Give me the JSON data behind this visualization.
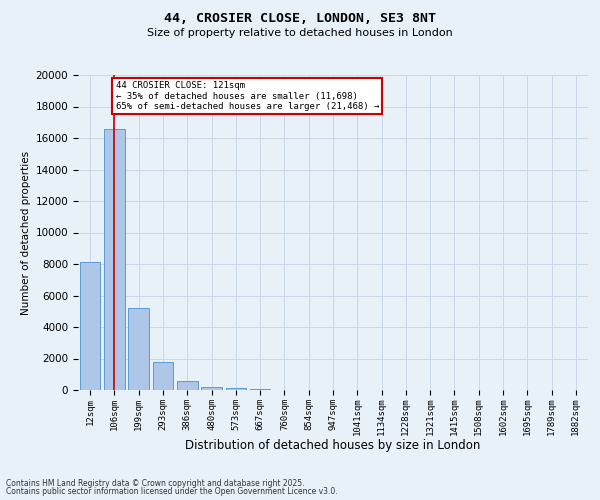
{
  "title1": "44, CROSIER CLOSE, LONDON, SE3 8NT",
  "title2": "Size of property relative to detached houses in London",
  "xlabel": "Distribution of detached houses by size in London",
  "ylabel": "Number of detached properties",
  "annotation_line1": "44 CROSIER CLOSE: 121sqm",
  "annotation_line2": "← 35% of detached houses are smaller (11,698)",
  "annotation_line3": "65% of semi-detached houses are larger (21,468) →",
  "footer1": "Contains HM Land Registry data © Crown copyright and database right 2025.",
  "footer2": "Contains public sector information licensed under the Open Government Licence v3.0.",
  "categories": [
    "12sqm",
    "106sqm",
    "199sqm",
    "293sqm",
    "386sqm",
    "480sqm",
    "573sqm",
    "667sqm",
    "760sqm",
    "854sqm",
    "947sqm",
    "1041sqm",
    "1134sqm",
    "1228sqm",
    "1321sqm",
    "1415sqm",
    "1508sqm",
    "1602sqm",
    "1695sqm",
    "1789sqm",
    "1882sqm"
  ],
  "values": [
    8100,
    16600,
    5200,
    1750,
    550,
    200,
    130,
    60,
    0,
    0,
    0,
    0,
    0,
    0,
    0,
    0,
    0,
    0,
    0,
    0,
    0
  ],
  "bar_color": "#aec6e8",
  "bar_edge_color": "#5b9bd5",
  "grid_color": "#c8d8e8",
  "background_color": "#e8f0f8",
  "vline_x": 1,
  "vline_color": "#cc0000",
  "annotation_box_color": "#cc0000",
  "ylim": [
    0,
    20000
  ],
  "yticks": [
    0,
    2000,
    4000,
    6000,
    8000,
    10000,
    12000,
    14000,
    16000,
    18000,
    20000
  ]
}
